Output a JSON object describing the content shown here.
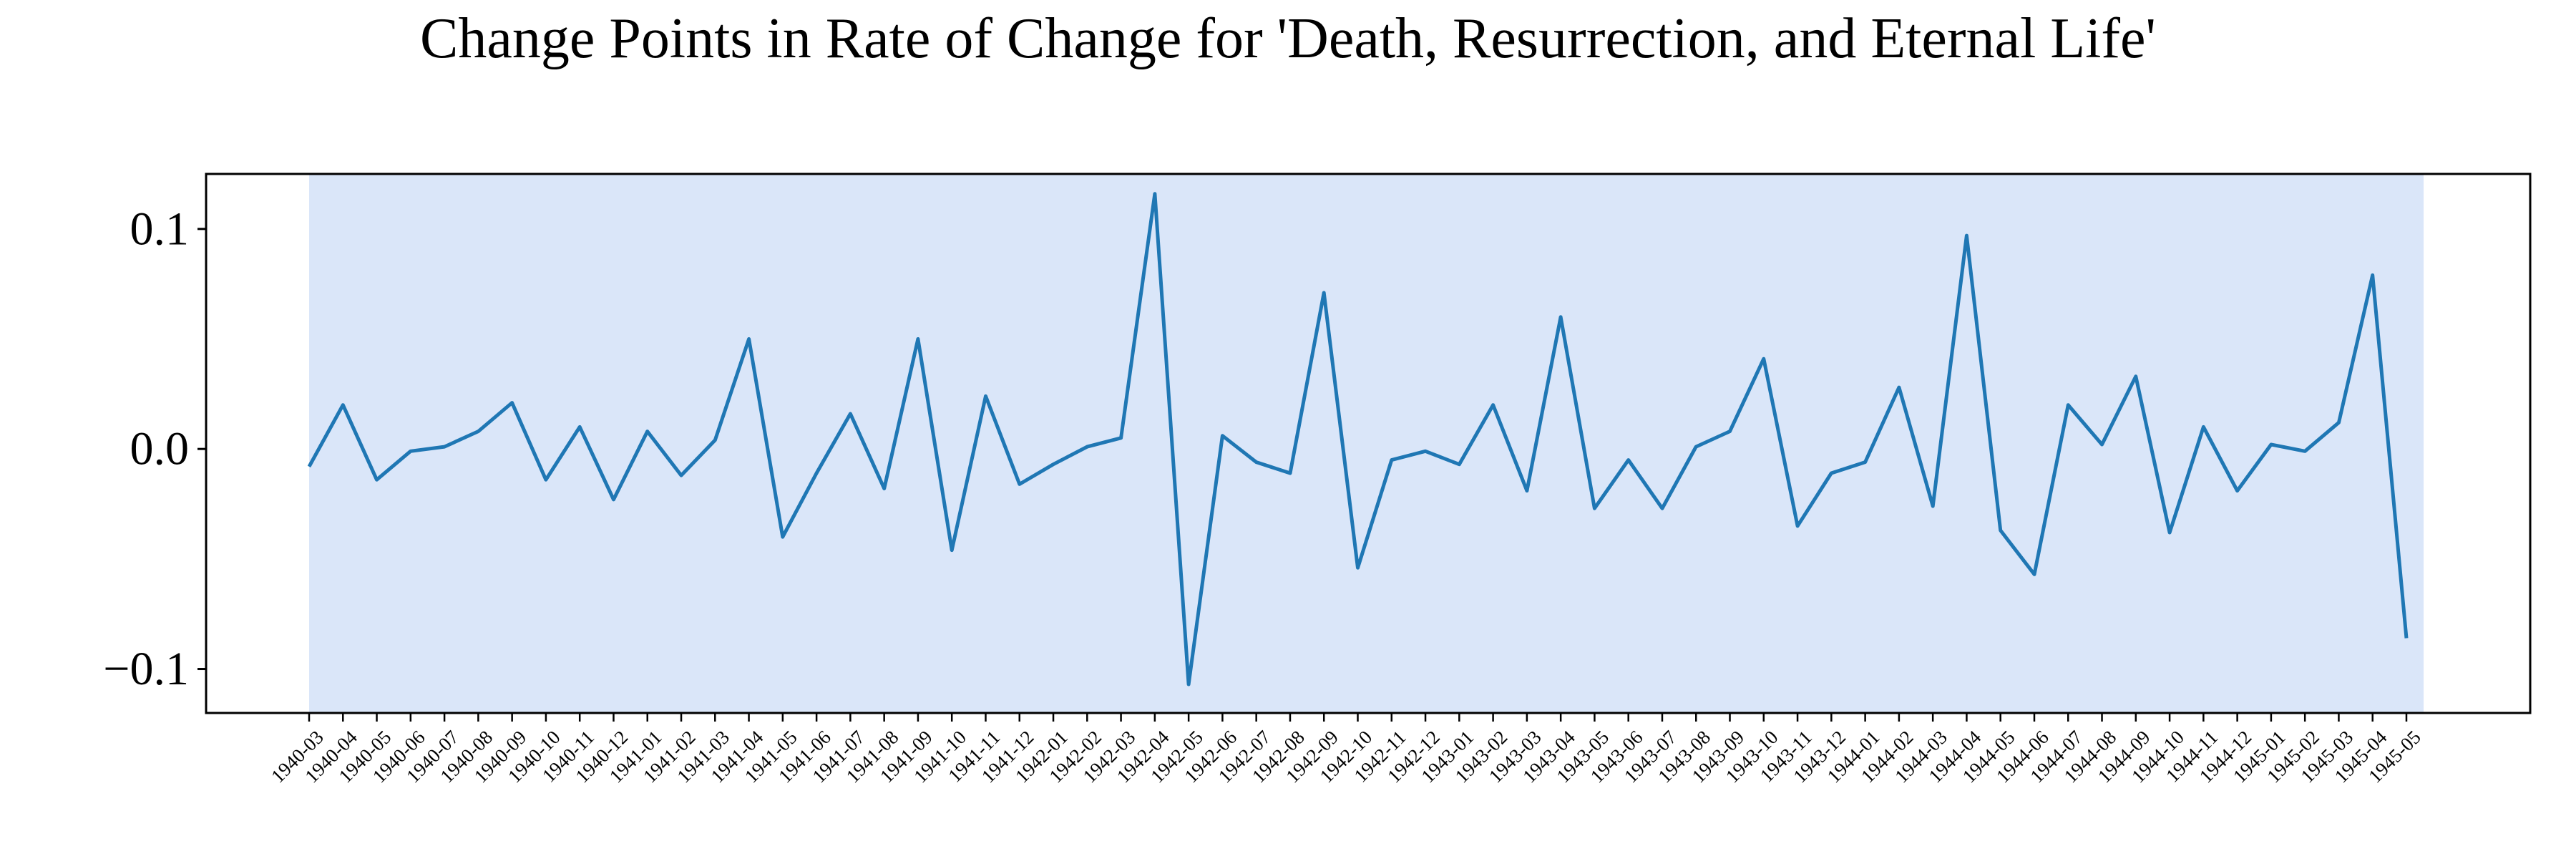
{
  "chart_data": {
    "type": "line",
    "title": "Change Points in Rate of Change for 'Death, Resurrection, and Eternal Life'",
    "xlabel": "",
    "ylabel": "",
    "ylim": [
      -0.12,
      0.125
    ],
    "yticks": [
      {
        "value": 0.1,
        "label": "0.1"
      },
      {
        "value": 0.0,
        "label": "0.0"
      },
      {
        "value": -0.1,
        "label": "−0.1"
      }
    ],
    "grid": false,
    "shaded_region": {
      "from": "1940-03",
      "to": "1945-05",
      "color": "#dae6f9"
    },
    "line_color": "#1f77b4",
    "background_color": "#ffffff",
    "x": [
      "1940-03",
      "1940-04",
      "1940-05",
      "1940-06",
      "1940-07",
      "1940-08",
      "1940-09",
      "1940-10",
      "1940-11",
      "1940-12",
      "1941-01",
      "1941-02",
      "1941-03",
      "1941-04",
      "1941-05",
      "1941-06",
      "1941-07",
      "1941-08",
      "1941-09",
      "1941-10",
      "1941-11",
      "1941-12",
      "1942-01",
      "1942-02",
      "1942-03",
      "1942-04",
      "1942-05",
      "1942-06",
      "1942-07",
      "1942-08",
      "1942-09",
      "1942-10",
      "1942-11",
      "1942-12",
      "1943-01",
      "1943-02",
      "1943-03",
      "1943-04",
      "1943-05",
      "1943-06",
      "1943-07",
      "1943-08",
      "1943-09",
      "1943-10",
      "1943-11",
      "1943-12",
      "1944-01",
      "1944-02",
      "1944-03",
      "1944-04",
      "1944-05",
      "1944-06",
      "1944-07",
      "1944-08",
      "1944-09",
      "1944-10",
      "1944-11",
      "1944-12",
      "1945-01",
      "1945-02",
      "1945-03",
      "1945-04",
      "1945-05"
    ],
    "series": [
      {
        "values": [
          -0.008,
          0.02,
          -0.014,
          -0.001,
          0.001,
          0.008,
          0.021,
          -0.014,
          0.01,
          -0.023,
          0.008,
          -0.012,
          0.004,
          0.05,
          -0.04,
          -0.011,
          0.016,
          -0.018,
          0.05,
          -0.046,
          0.024,
          -0.016,
          -0.007,
          0.001,
          0.005,
          0.116,
          -0.107,
          0.006,
          -0.006,
          -0.011,
          0.071,
          -0.054,
          -0.005,
          -0.001,
          -0.007,
          0.02,
          -0.019,
          0.06,
          -0.027,
          -0.005,
          -0.027,
          0.001,
          0.008,
          0.041,
          -0.035,
          -0.011,
          -0.006,
          0.028,
          -0.026,
          0.097,
          -0.037,
          -0.057,
          0.02,
          0.002,
          0.033,
          -0.038,
          0.01,
          -0.019,
          0.002,
          -0.001,
          0.012,
          0.079,
          -0.086
        ]
      }
    ]
  }
}
